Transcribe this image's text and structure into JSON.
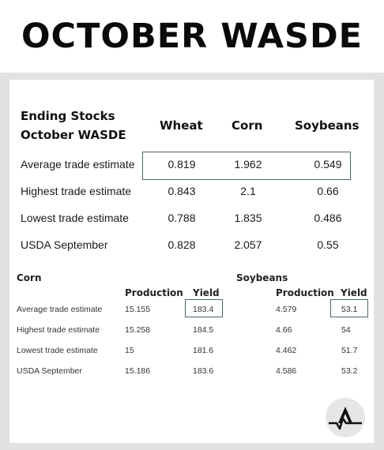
{
  "header": {
    "title": "OCTOBER WASDE"
  },
  "ending_stocks": {
    "heading_line1": "Ending Stocks",
    "heading_line2": "October WASDE",
    "columns": [
      "Wheat",
      "Corn",
      "Soybeans"
    ],
    "rows": [
      {
        "label": "Average trade estimate",
        "values": [
          "0.819",
          "1.962",
          "0.549"
        ]
      },
      {
        "label": "Highest trade estimate",
        "values": [
          "0.843",
          "2.1",
          "0.66"
        ]
      },
      {
        "label": "Lowest trade estimate",
        "values": [
          "0.788",
          "1.835",
          "0.486"
        ]
      },
      {
        "label": "USDA September",
        "values": [
          "0.828",
          "2.057",
          "0.55"
        ]
      }
    ]
  },
  "corn": {
    "title": "Corn",
    "columns": [
      "Production",
      "Yield"
    ],
    "rows": [
      {
        "label": "Average trade estimate",
        "values": [
          "15.155",
          "183.4"
        ]
      },
      {
        "label": "Highest trade estimate",
        "values": [
          "15.258",
          "184.5"
        ]
      },
      {
        "label": "Lowest trade estimate",
        "values": [
          "15",
          "181.6"
        ]
      },
      {
        "label": "USDA September",
        "values": [
          "15.186",
          "183.6"
        ]
      }
    ]
  },
  "soybeans": {
    "title": "Soybeans",
    "columns": [
      "Production",
      "Yield"
    ],
    "rows": [
      {
        "values": [
          "4.579",
          "53.1"
        ]
      },
      {
        "values": [
          "4.66",
          "54"
        ]
      },
      {
        "values": [
          "4.462",
          "51.7"
        ]
      },
      {
        "values": [
          "4.586",
          "53.2"
        ]
      }
    ]
  },
  "colors": {
    "highlight_border": "#4d6b5c",
    "frame": "#e2e2e2"
  },
  "logo": {
    "icon": "peak-pulse-logo-icon"
  }
}
